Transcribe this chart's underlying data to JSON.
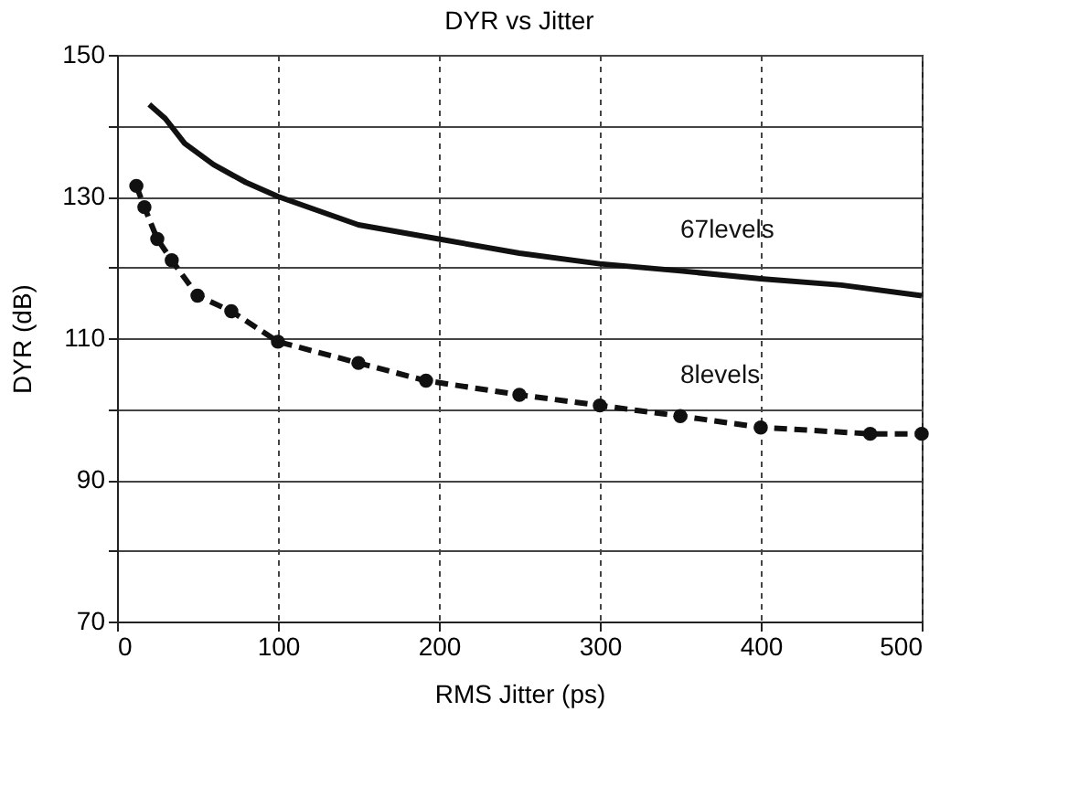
{
  "chart_data": {
    "type": "line",
    "title": "DYR vs  Jitter",
    "xlabel": "RMS Jitter (ps)",
    "ylabel": "DYR (dB)",
    "xlim": [
      0,
      500
    ],
    "xticks": [
      0,
      100,
      200,
      300,
      400,
      500
    ],
    "ylim": [
      70,
      150
    ],
    "yticks": [
      70,
      {
        "value": 80,
        "label": null
      },
      90,
      {
        "value": 100,
        "label": null
      },
      110,
      {
        "value": 120,
        "label": null
      },
      130,
      {
        "value": 140,
        "label": null
      },
      150
    ],
    "grid": true,
    "series": [
      {
        "name": "67levels",
        "color": "#111111",
        "line_style": "solid",
        "marker": "none",
        "x": [
          20,
          30,
          42,
          60,
          80,
          100,
          125,
          150,
          175,
          200,
          250,
          300,
          350,
          400,
          450,
          500
        ],
        "values": [
          143,
          141,
          137.5,
          134.5,
          132,
          130,
          128,
          126,
          125,
          124,
          122,
          120.5,
          119.5,
          118.4,
          117.5,
          116
        ]
      },
      {
        "name": "8levels",
        "color": "#111111",
        "line_style": "dashed",
        "marker": "circle",
        "x": [
          12,
          17,
          25,
          34,
          50,
          71,
          100,
          150,
          192,
          250,
          300,
          350,
          400,
          468,
          500
        ],
        "values": [
          131.5,
          128.5,
          124,
          121,
          116,
          113.8,
          109.5,
          106.5,
          104,
          102,
          100.5,
          99,
          97.4,
          96.5,
          96.5
        ]
      }
    ]
  }
}
